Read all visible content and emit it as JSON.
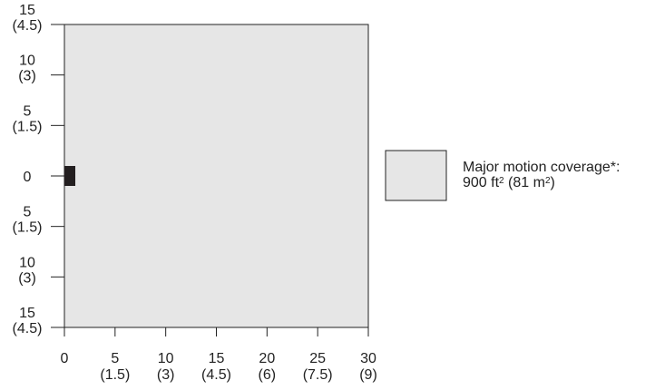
{
  "y_ticks": [
    {
      "value": 15,
      "ft": "15",
      "m": "(4.5)"
    },
    {
      "value": 10,
      "ft": "10",
      "m": "(3)"
    },
    {
      "value": 5,
      "ft": "5",
      "m": "(1.5)"
    },
    {
      "value": 0,
      "ft": "0",
      "m": ""
    },
    {
      "value": -5,
      "ft": "5",
      "m": "(1.5)"
    },
    {
      "value": -10,
      "ft": "10",
      "m": "(3)"
    },
    {
      "value": -15,
      "ft": "15",
      "m": "(4.5)"
    }
  ],
  "x_ticks": [
    {
      "value": 0,
      "ft": "0",
      "m": ""
    },
    {
      "value": 5,
      "ft": "5",
      "m": "(1.5)"
    },
    {
      "value": 10,
      "ft": "10",
      "m": "(3)"
    },
    {
      "value": 15,
      "ft": "15",
      "m": "(4.5)"
    },
    {
      "value": 20,
      "ft": "20",
      "m": "(6)"
    },
    {
      "value": 25,
      "ft": "25",
      "m": "(7.5)"
    },
    {
      "value": 30,
      "ft": "30",
      "m": "(9)"
    }
  ],
  "coverage": {
    "x_range": [
      0,
      30
    ],
    "y_range": [
      -15,
      15
    ],
    "fill": "#e6e6e6"
  },
  "sensor": {
    "color": "#231f20"
  },
  "legend": {
    "line1": "Major motion coverage*:",
    "area_ft": "900 ft",
    "area_ft_sup": "2",
    "area_m": " (81 m",
    "area_m_sup": "2",
    "area_close": ")",
    "swatch_fill": "#e6e6e6"
  }
}
